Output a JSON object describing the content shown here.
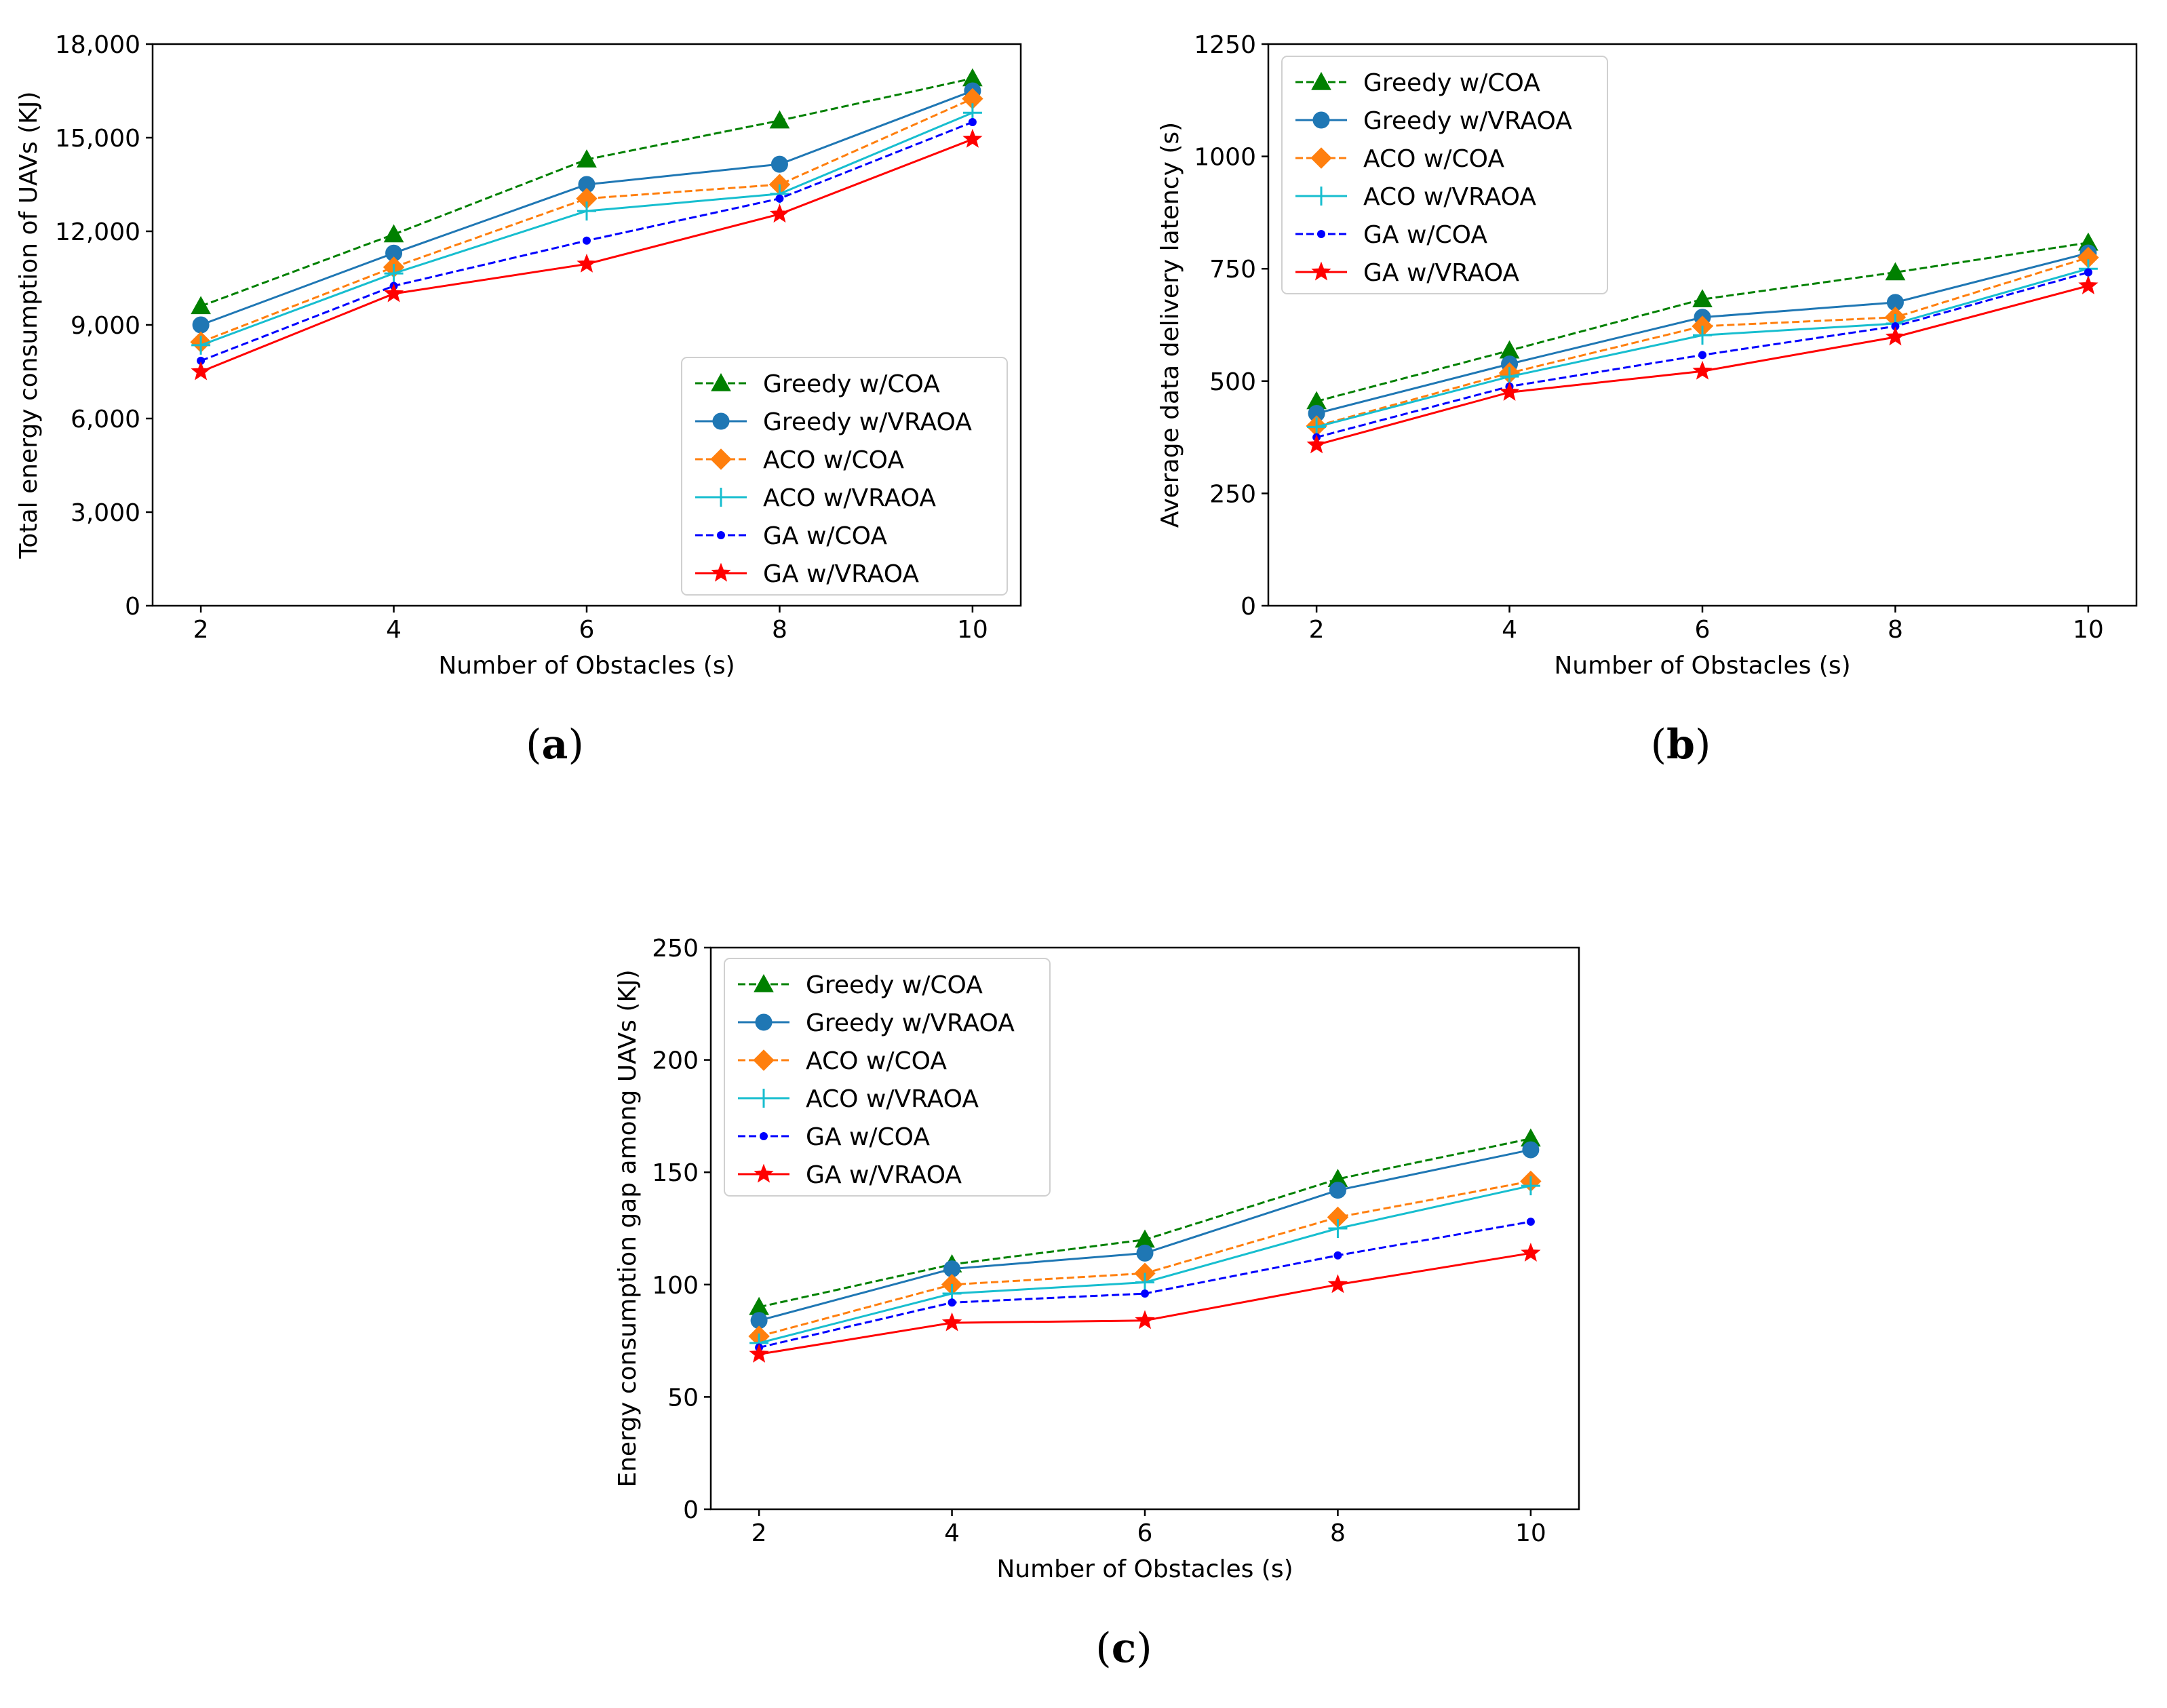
{
  "series_styles": [
    {
      "key": "greedy_coa",
      "color": "#008000",
      "dash": "dashed",
      "marker": "triangle"
    },
    {
      "key": "greedy_vraoa",
      "color": "#1f77b4",
      "dash": "solid",
      "marker": "circle"
    },
    {
      "key": "aco_coa",
      "color": "#ff7f0e",
      "dash": "dashed",
      "marker": "diamond"
    },
    {
      "key": "aco_vraoa",
      "color": "#17becf",
      "dash": "solid",
      "marker": "plus"
    },
    {
      "key": "ga_coa",
      "color": "#0000ff",
      "dash": "dashed",
      "marker": "dot"
    },
    {
      "key": "ga_vraoa",
      "color": "#ff0000",
      "dash": "solid",
      "marker": "star"
    }
  ],
  "chart_data": [
    {
      "id": "a",
      "type": "line",
      "caption": "a",
      "xlabel": "Number of Obstacles (s)",
      "ylabel": "Total energy consumption of UAVs (KJ)",
      "x": [
        2,
        4,
        6,
        8,
        10
      ],
      "xticks": [
        "2",
        "4",
        "6",
        "8",
        "10"
      ],
      "xlim": [
        1.5,
        10.5
      ],
      "ylim": [
        0,
        18000
      ],
      "yticks": [
        0,
        3000,
        6000,
        9000,
        12000,
        15000,
        18000
      ],
      "ytick_labels": [
        "0",
        "3,000",
        "6,000",
        "9,000",
        "12,000",
        "15,000",
        "18,000"
      ],
      "legend_position": "lower-right",
      "series": [
        {
          "name": "Greedy w/COA",
          "values": [
            9600,
            11900,
            14300,
            15550,
            16900
          ]
        },
        {
          "name": "Greedy w/VRAOA",
          "values": [
            9000,
            11300,
            13500,
            14150,
            16500
          ]
        },
        {
          "name": "ACO w/COA",
          "values": [
            8450,
            10850,
            13050,
            13500,
            16250
          ]
        },
        {
          "name": "ACO w/VRAOA",
          "values": [
            8350,
            10650,
            12650,
            13200,
            15800
          ]
        },
        {
          "name": "GA w/COA",
          "values": [
            7850,
            10250,
            11700,
            13050,
            15500
          ]
        },
        {
          "name": "GA w/VRAOA",
          "values": [
            7500,
            10000,
            10950,
            12550,
            14950
          ]
        }
      ]
    },
    {
      "id": "b",
      "type": "line",
      "caption": "b",
      "xlabel": "Number of Obstacles (s)",
      "ylabel": "Average data delivery latency (s)",
      "x": [
        2,
        4,
        6,
        8,
        10
      ],
      "xticks": [
        "2",
        "4",
        "6",
        "8",
        "10"
      ],
      "xlim": [
        1.5,
        10.5
      ],
      "ylim": [
        0,
        1250
      ],
      "yticks": [
        0,
        250,
        500,
        750,
        1000,
        1250
      ],
      "ytick_labels": [
        "0",
        "250",
        "500",
        "750",
        "1000",
        "1250"
      ],
      "legend_position": "upper-left",
      "series": [
        {
          "name": "Greedy w/COA",
          "values": [
            455,
            568,
            682,
            742,
            808
          ]
        },
        {
          "name": "Greedy w/VRAOA",
          "values": [
            428,
            538,
            642,
            675,
            785
          ]
        },
        {
          "name": "ACO w/COA",
          "values": [
            400,
            518,
            622,
            642,
            775
          ]
        },
        {
          "name": "ACO w/VRAOA",
          "values": [
            398,
            510,
            602,
            628,
            750
          ]
        },
        {
          "name": "GA w/COA",
          "values": [
            375,
            488,
            558,
            622,
            742
          ]
        },
        {
          "name": "GA w/VRAOA",
          "values": [
            358,
            475,
            522,
            598,
            712
          ]
        }
      ]
    },
    {
      "id": "c",
      "type": "line",
      "caption": "c",
      "xlabel": "Number of Obstacles (s)",
      "ylabel": "Energy consumption gap among UAVs (KJ)",
      "x": [
        2,
        4,
        6,
        8,
        10
      ],
      "xticks": [
        "2",
        "4",
        "6",
        "8",
        "10"
      ],
      "xlim": [
        1.5,
        10.5
      ],
      "ylim": [
        0,
        250
      ],
      "yticks": [
        0,
        50,
        100,
        150,
        200,
        250
      ],
      "ytick_labels": [
        "0",
        "50",
        "100",
        "150",
        "200",
        "250"
      ],
      "legend_position": "upper-left",
      "series": [
        {
          "name": "Greedy w/COA",
          "values": [
            90,
            109,
            120,
            147,
            165
          ]
        },
        {
          "name": "Greedy w/VRAOA",
          "values": [
            84,
            107,
            114,
            142,
            160
          ]
        },
        {
          "name": "ACO w/COA",
          "values": [
            77,
            100,
            105,
            130,
            146
          ]
        },
        {
          "name": "ACO w/VRAOA",
          "values": [
            74,
            96,
            101,
            125,
            144
          ]
        },
        {
          "name": "GA w/COA",
          "values": [
            72,
            92,
            96,
            113,
            128
          ]
        },
        {
          "name": "GA w/VRAOA",
          "values": [
            69,
            83,
            84,
            100,
            114
          ]
        }
      ]
    }
  ]
}
